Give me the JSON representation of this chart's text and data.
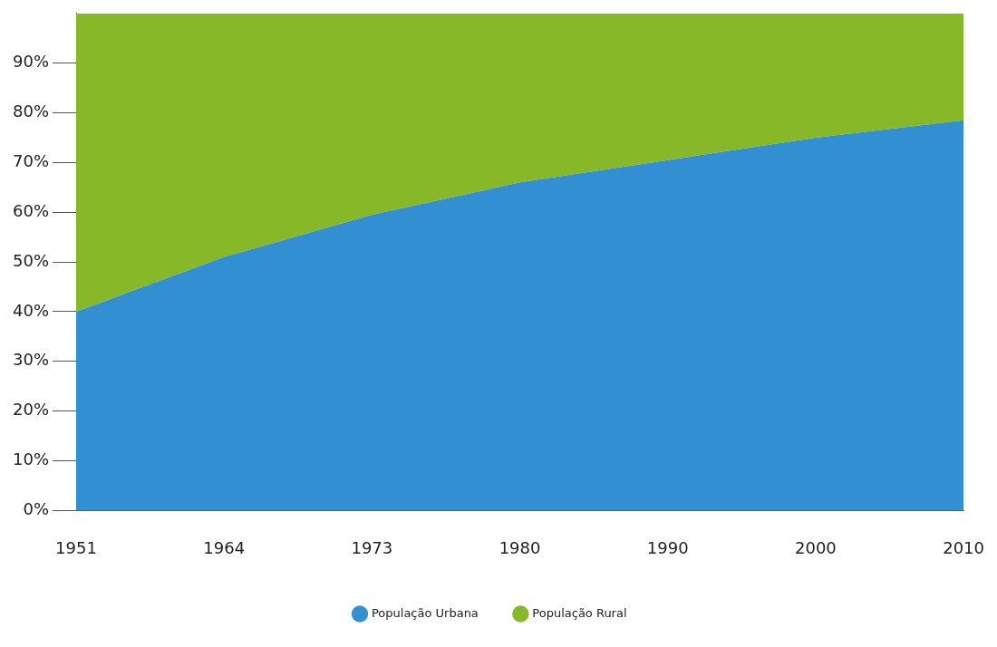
{
  "chart_data": {
    "type": "area",
    "stacked": true,
    "categories": [
      "1951",
      "1964",
      "1973",
      "1980",
      "1990",
      "2000",
      "2010"
    ],
    "series": [
      {
        "name": "População Urbana",
        "color": "#3290d2",
        "values": [
          40,
          51,
          59.5,
          66,
          70.5,
          75,
          78.5
        ]
      },
      {
        "name": "População Rural",
        "color": "#86b828",
        "values": [
          60,
          49,
          40.5,
          34,
          29.5,
          25,
          21.5
        ]
      }
    ],
    "ylim": [
      0,
      100
    ],
    "yticks": [
      {
        "value": 0,
        "label": "0%"
      },
      {
        "value": 10,
        "label": "10%"
      },
      {
        "value": 20,
        "label": "20%"
      },
      {
        "value": 30,
        "label": "30%"
      },
      {
        "value": 40,
        "label": "40%"
      },
      {
        "value": 50,
        "label": "50%"
      },
      {
        "value": 60,
        "label": "60%"
      },
      {
        "value": 70,
        "label": "70%"
      },
      {
        "value": 80,
        "label": "80%"
      },
      {
        "value": 90,
        "label": "90%"
      }
    ],
    "grid": false,
    "legend": "bottom"
  }
}
